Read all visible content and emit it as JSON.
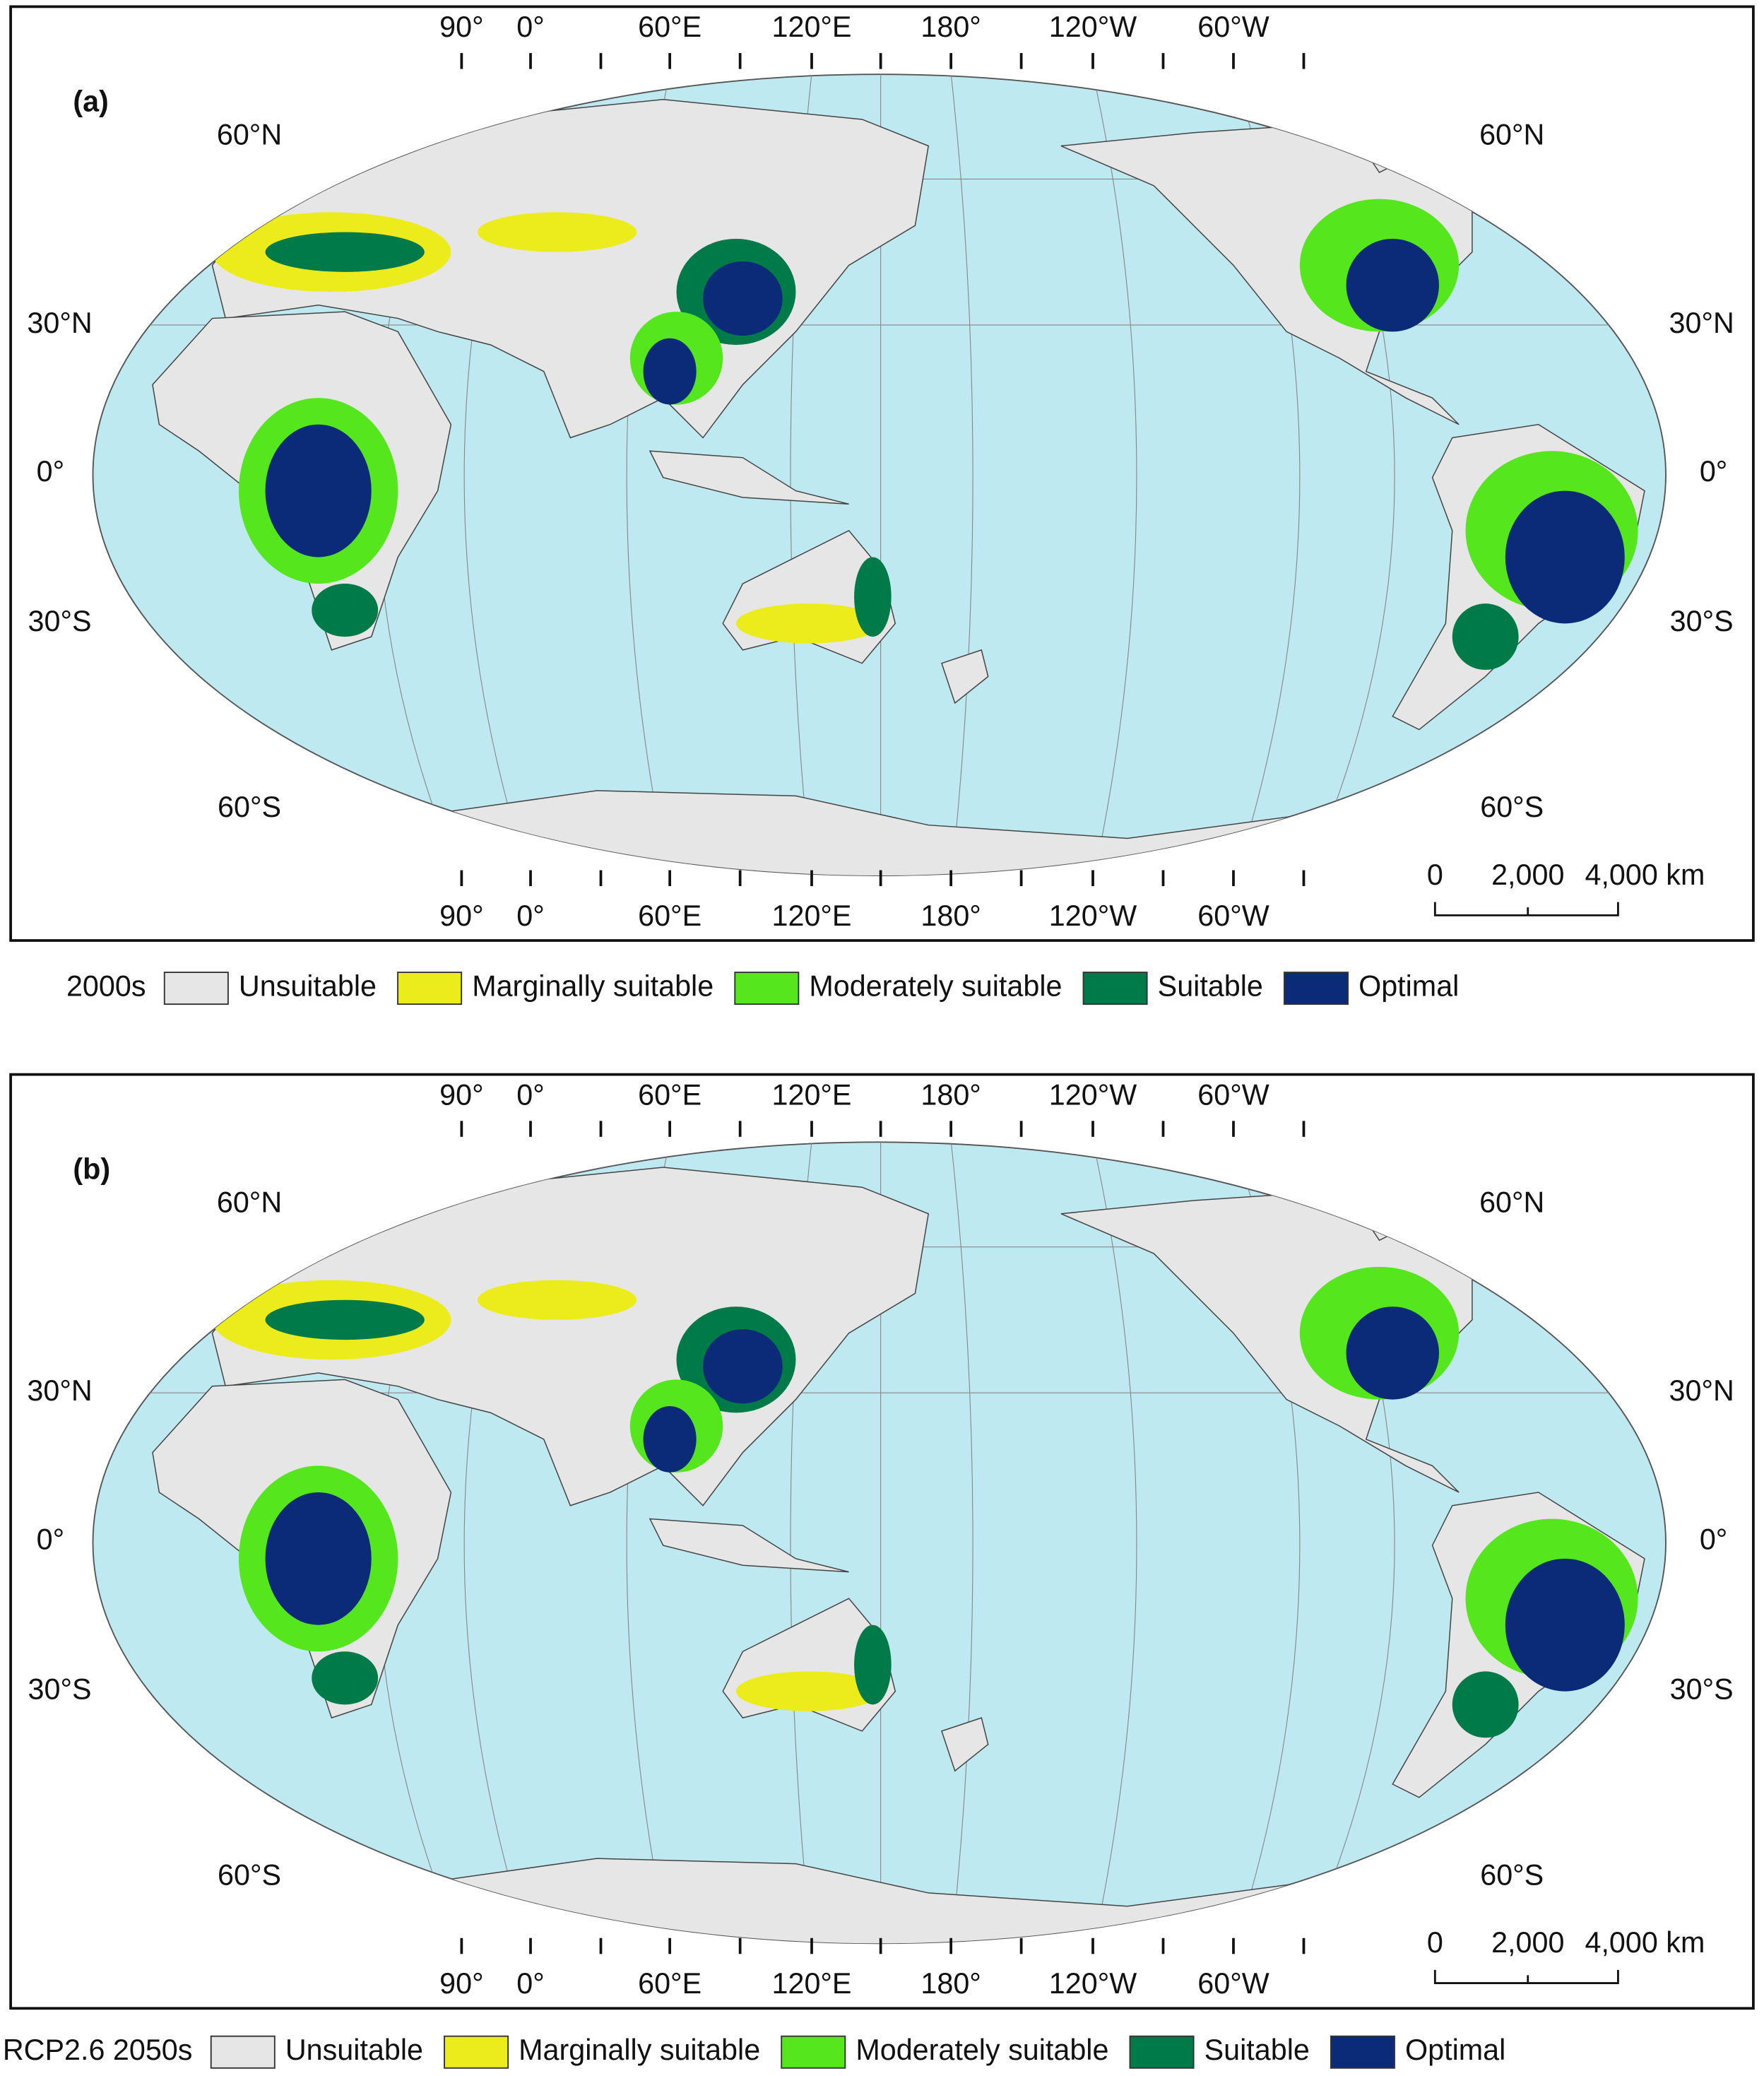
{
  "panels": [
    {
      "label": "(a)",
      "top_longitudes": [
        "90°",
        "0°",
        "60°E",
        "120°E",
        "180°",
        "120°W",
        "60°W"
      ],
      "bottom_longitudes": [
        "90°",
        "0°",
        "60°E",
        "120°E",
        "180°",
        "120°W",
        "60°W"
      ],
      "latitudes_left": [
        "60°N",
        "30°N",
        "0°",
        "30°S",
        "60°S"
      ],
      "latitudes_right": [
        "60°N",
        "30°N",
        "0°",
        "30°S",
        "60°S"
      ],
      "scale_bar": [
        "0",
        "2,000",
        "4,000 km"
      ],
      "legend": {
        "title": "2000s",
        "items": [
          {
            "label": "Unsuitable",
            "color": "#e6e6e6"
          },
          {
            "label": "Marginally suitable",
            "color": "#ecec1c"
          },
          {
            "label": "Moderately suitable",
            "color": "#55e61e"
          },
          {
            "label": "Suitable",
            "color": "#007a48"
          },
          {
            "label": "Optimal",
            "color": "#0b2a78"
          }
        ]
      }
    },
    {
      "label": "(b)",
      "top_longitudes": [
        "90°",
        "0°",
        "60°E",
        "120°E",
        "180°",
        "120°W",
        "60°W"
      ],
      "bottom_longitudes": [
        "90°",
        "0°",
        "60°E",
        "120°E",
        "180°",
        "120°W",
        "60°W"
      ],
      "latitudes_left": [
        "60°N",
        "30°N",
        "0°",
        "30°S",
        "60°S"
      ],
      "latitudes_right": [
        "60°N",
        "30°N",
        "0°",
        "30°S",
        "60°S"
      ],
      "scale_bar": [
        "0",
        "2,000",
        "4,000 km"
      ],
      "legend": {
        "title": "RCP2.6 2050s",
        "items": [
          {
            "label": "Unsuitable",
            "color": "#e6e6e6"
          },
          {
            "label": "Marginally suitable",
            "color": "#ecec1c"
          },
          {
            "label": "Moderately suitable",
            "color": "#55e61e"
          },
          {
            "label": "Suitable",
            "color": "#007a48"
          },
          {
            "label": "Optimal",
            "color": "#0b2a78"
          }
        ]
      }
    }
  ]
}
